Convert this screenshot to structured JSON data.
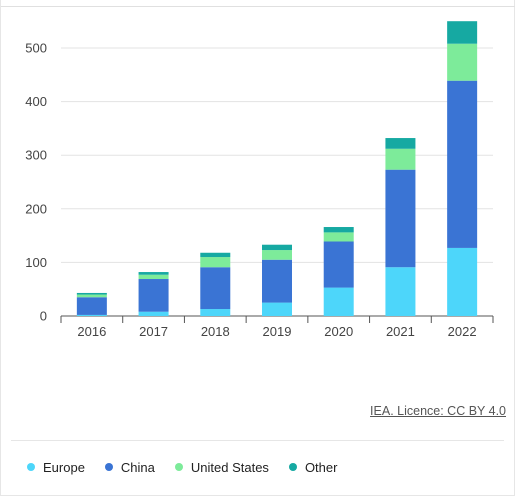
{
  "chart_data": {
    "type": "bar",
    "stacked": true,
    "categories": [
      "2016",
      "2017",
      "2018",
      "2019",
      "2020",
      "2021",
      "2022"
    ],
    "series": [
      {
        "name": "Europe",
        "color": "#4dd6fa",
        "values": [
          2,
          8,
          13,
          25,
          53,
          91,
          127
        ]
      },
      {
        "name": "China",
        "color": "#3a74d4",
        "values": [
          33,
          61,
          78,
          80,
          86,
          182,
          312
        ]
      },
      {
        "name": "United States",
        "color": "#7deb9a",
        "values": [
          5,
          8,
          19,
          18,
          17,
          39,
          69
        ]
      },
      {
        "name": "Other",
        "color": "#16a9a2",
        "values": [
          3,
          5,
          8,
          10,
          10,
          20,
          42
        ]
      }
    ],
    "yticks": [
      0,
      100,
      200,
      300,
      400,
      500
    ],
    "ylim": [
      0,
      550
    ],
    "grid": true,
    "legend_position": "bottom"
  },
  "source_text": "IEA. Licence: CC BY 4.0"
}
